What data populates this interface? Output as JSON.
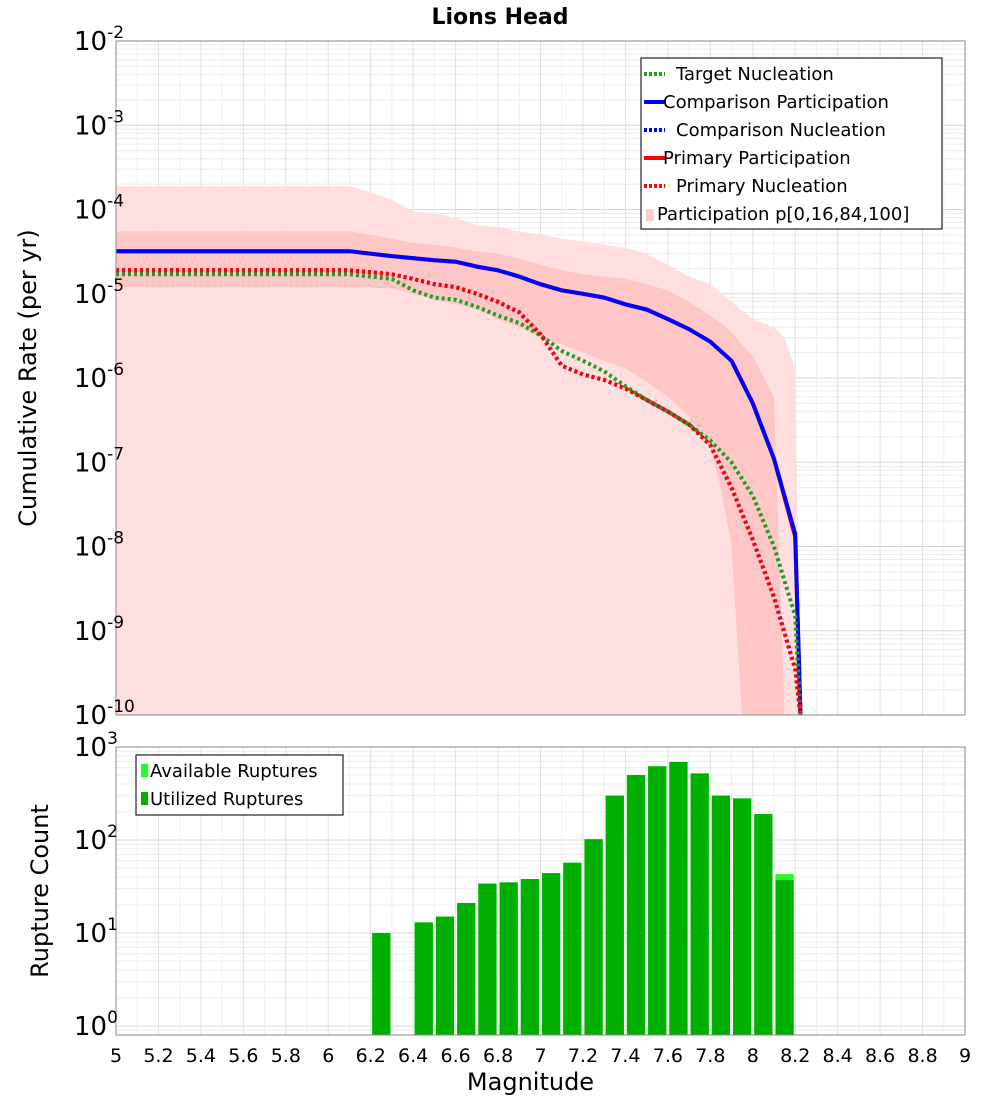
{
  "title": "Lions Head",
  "colors": {
    "target": "#1f9e1f",
    "comparison": "#0000ff",
    "primary": "#ff0000",
    "band_outer": "#ffdcdc",
    "band_inner": "#ffbdbd",
    "available": "#22ff22",
    "utilized": "#00b000"
  },
  "chart_data": [
    {
      "type": "line",
      "title": "Lions Head",
      "ylabel": "Cumulative Rate (per yr)",
      "xlim": [
        5,
        9
      ],
      "ylim": [
        1e-10,
        0.01
      ],
      "yscale": "log",
      "grid": true,
      "legend_position": "top-right",
      "y_ticks": [
        {
          "base": "10",
          "exp": "-2",
          "value": 0.01
        },
        {
          "base": "10",
          "exp": "-3",
          "value": 0.001
        },
        {
          "base": "10",
          "exp": "-4",
          "value": 0.0001
        },
        {
          "base": "10",
          "exp": "-5",
          "value": 1e-05
        },
        {
          "base": "10",
          "exp": "-6",
          "value": 1e-06
        },
        {
          "base": "10",
          "exp": "-7",
          "value": 1e-07
        },
        {
          "base": "10",
          "exp": "-8",
          "value": 1e-08
        },
        {
          "base": "10",
          "exp": "-9",
          "value": 1e-09
        },
        {
          "base": "10",
          "exp": "-10",
          "value": 1e-10
        }
      ],
      "legend": [
        {
          "label": "Target Nucleation",
          "style": "dotted",
          "color": "#1f9e1f"
        },
        {
          "label": "Comparison Participation",
          "style": "solid",
          "color": "#0000ff"
        },
        {
          "label": "Comparison Nucleation",
          "style": "dotted",
          "color": "#0000ff"
        },
        {
          "label": "Primary Participation",
          "style": "solid",
          "color": "#ff0000"
        },
        {
          "label": "Primary Nucleation",
          "style": "dotted",
          "color": "#ff0000"
        },
        {
          "label": "Participation p[0,16,84,100]",
          "style": "band",
          "color": "#ffdcdc"
        }
      ],
      "series": [
        {
          "name": "Primary Participation",
          "style": "solid",
          "color": "#ff0000",
          "x": [
            5.0,
            6.1,
            6.3,
            6.5,
            6.6,
            6.7,
            6.8,
            6.9,
            7.0,
            7.1,
            7.2,
            7.3,
            7.4,
            7.5,
            7.6,
            7.7,
            7.8,
            7.9,
            8.0,
            8.1,
            8.2,
            8.225
          ],
          "y": [
            3.2e-05,
            3.2e-05,
            2.8e-05,
            2.5e-05,
            2.4e-05,
            2.1e-05,
            1.9e-05,
            1.6e-05,
            1.3e-05,
            1.1e-05,
            1e-05,
            9e-06,
            7.5e-06,
            6.5e-06,
            5e-06,
            3.8e-06,
            2.7e-06,
            1.6e-06,
            5e-07,
            1.1e-07,
            1.3e-08,
            1e-10
          ]
        },
        {
          "name": "Comparison Participation",
          "style": "solid",
          "color": "#0000ff",
          "x": [
            5.0,
            6.1,
            6.3,
            6.5,
            6.6,
            6.7,
            6.8,
            6.9,
            7.0,
            7.1,
            7.2,
            7.3,
            7.4,
            7.5,
            7.6,
            7.7,
            7.8,
            7.9,
            8.0,
            8.1,
            8.2,
            8.225
          ],
          "y": [
            3.2e-05,
            3.2e-05,
            2.8e-05,
            2.5e-05,
            2.4e-05,
            2.1e-05,
            1.9e-05,
            1.6e-05,
            1.3e-05,
            1.1e-05,
            1e-05,
            9e-06,
            7.5e-06,
            6.5e-06,
            5e-06,
            3.8e-06,
            2.7e-06,
            1.6e-06,
            5e-07,
            1.1e-07,
            1.4e-08,
            1e-10
          ]
        },
        {
          "name": "Target Nucleation",
          "style": "dotted",
          "color": "#1f9e1f",
          "x": [
            5.0,
            6.1,
            6.2,
            6.3,
            6.4,
            6.5,
            6.6,
            6.7,
            6.8,
            6.9,
            7.0,
            7.1,
            7.2,
            7.3,
            7.4,
            7.5,
            7.6,
            7.7,
            7.8,
            7.9,
            8.0,
            8.1,
            8.2,
            8.225
          ],
          "y": [
            1.7e-05,
            1.7e-05,
            1.6e-05,
            1.5e-05,
            1.1e-05,
            9e-06,
            8.5e-06,
            7e-06,
            5.5e-06,
            4.5e-06,
            3.2e-06,
            2.1e-06,
            1.6e-06,
            1.2e-06,
            8e-07,
            5.5e-07,
            4e-07,
            2.8e-07,
            1.8e-07,
            1e-07,
            4e-08,
            1e-08,
            1.5e-09,
            1e-10
          ]
        },
        {
          "name": "Comparison Nucleation",
          "style": "dotted",
          "color": "#0000ff",
          "x": [
            5.0,
            6.1,
            6.2,
            6.3,
            6.4,
            6.5,
            6.6,
            6.7,
            6.8,
            6.9,
            7.0,
            7.1,
            7.2,
            7.3,
            7.4,
            7.5,
            7.6,
            7.7,
            7.8,
            7.9,
            8.0,
            8.1,
            8.2,
            8.225
          ],
          "y": [
            1.9e-05,
            1.9e-05,
            1.8e-05,
            1.7e-05,
            1.5e-05,
            1.3e-05,
            1.2e-05,
            1e-05,
            8e-06,
            6e-06,
            3.3e-06,
            1.4e-06,
            1.1e-06,
            9.5e-07,
            7.5e-07,
            5.5e-07,
            4e-07,
            2.8e-07,
            1.6e-07,
            5e-08,
            1.2e-08,
            2.5e-09,
            3.5e-10,
            1e-10
          ]
        },
        {
          "name": "Primary Nucleation",
          "style": "dotted",
          "color": "#ff0000",
          "x": [
            5.0,
            6.1,
            6.2,
            6.3,
            6.4,
            6.5,
            6.6,
            6.7,
            6.8,
            6.9,
            7.0,
            7.1,
            7.2,
            7.3,
            7.4,
            7.5,
            7.6,
            7.7,
            7.8,
            7.9,
            8.0,
            8.1,
            8.2,
            8.225
          ],
          "y": [
            1.9e-05,
            1.9e-05,
            1.8e-05,
            1.7e-05,
            1.5e-05,
            1.3e-05,
            1.2e-05,
            1e-05,
            8e-06,
            6e-06,
            3.3e-06,
            1.4e-06,
            1.1e-06,
            9.5e-07,
            7.5e-07,
            5.5e-07,
            4e-07,
            2.8e-07,
            1.6e-07,
            5e-08,
            1.2e-08,
            2.5e-09,
            3.5e-10,
            1e-10
          ]
        }
      ],
      "bands": [
        {
          "name": "p0-p100",
          "x": [
            5.0,
            6.1,
            6.2,
            6.3,
            6.4,
            6.5,
            6.6,
            6.7,
            6.8,
            6.9,
            7.0,
            7.1,
            7.2,
            7.3,
            7.4,
            7.5,
            7.6,
            7.7,
            7.8,
            7.9,
            8.0,
            8.1,
            8.15,
            8.2,
            8.225
          ],
          "upper": [
            0.00019,
            0.00019,
            0.00016,
            0.00013,
            9.5e-05,
            9e-05,
            8e-05,
            6.5e-05,
            6.2e-05,
            5.5e-05,
            5e-05,
            4.5e-05,
            4.2e-05,
            3.8e-05,
            3.5e-05,
            3e-05,
            2.2e-05,
            1.6e-05,
            1.3e-05,
            8e-06,
            5e-06,
            4e-06,
            3e-06,
            1.3e-06,
            1e-10
          ],
          "lower": [
            1e-10,
            1e-10,
            1e-10,
            1e-10,
            1e-10,
            1e-10,
            1e-10,
            1e-10,
            1e-10,
            1e-10,
            1e-10,
            1e-10,
            1e-10,
            1e-10,
            1e-10,
            1e-10,
            1e-10,
            1e-10,
            1e-10,
            1e-10,
            1e-10,
            1e-10,
            1e-10,
            1e-10,
            1e-10
          ]
        },
        {
          "name": "p16-p84",
          "x": [
            5.0,
            6.1,
            6.2,
            6.3,
            6.4,
            6.5,
            6.6,
            6.7,
            6.8,
            6.9,
            7.0,
            7.1,
            7.2,
            7.3,
            7.4,
            7.5,
            7.6,
            7.7,
            7.8,
            7.85,
            7.9,
            7.95,
            8.0,
            8.1,
            8.15
          ],
          "upper": [
            5.5e-05,
            5.5e-05,
            5e-05,
            4.5e-05,
            4e-05,
            3.8e-05,
            3.5e-05,
            3.2e-05,
            3e-05,
            2.6e-05,
            2.2e-05,
            1.9e-05,
            1.7e-05,
            1.6e-05,
            1.5e-05,
            1.3e-05,
            1.1e-05,
            8e-06,
            5.5e-06,
            4.5e-06,
            3.5e-06,
            2.5e-06,
            1.8e-06,
            6e-07,
            1e-10
          ],
          "lower": [
            1.2e-05,
            1.2e-05,
            1.2e-05,
            1.15e-05,
            1e-05,
            8.5e-06,
            7.5e-06,
            6.5e-06,
            5e-06,
            4e-06,
            3e-06,
            2.5e-06,
            2e-06,
            1.6e-06,
            1.3e-06,
            9e-07,
            6e-07,
            3.5e-07,
            1.5e-07,
            5e-08,
            1e-08,
            1e-10,
            1e-10,
            1e-10,
            1e-10
          ]
        }
      ]
    },
    {
      "type": "bar",
      "xlabel": "Magnitude",
      "ylabel": "Rupture Count",
      "xlim": [
        5,
        9
      ],
      "ylim": [
        0.8,
        1000
      ],
      "yscale": "log",
      "grid": true,
      "legend_position": "top-left",
      "x_ticks": [
        "5",
        "5.2",
        "5.4",
        "5.6",
        "5.8",
        "6",
        "6.2",
        "6.4",
        "6.6",
        "6.8",
        "7",
        "7.2",
        "7.4",
        "7.6",
        "7.8",
        "8",
        "8.2",
        "8.4",
        "8.6",
        "8.8",
        "9"
      ],
      "y_ticks": [
        {
          "base": "10",
          "exp": "3",
          "value": 1000
        },
        {
          "base": "10",
          "exp": "2",
          "value": 100
        },
        {
          "base": "10",
          "exp": "1",
          "value": 10
        },
        {
          "base": "10",
          "exp": "0",
          "value": 1
        }
      ],
      "legend": [
        {
          "label": "Available Ruptures",
          "color": "#22ff22"
        },
        {
          "label": "Utilized Ruptures",
          "color": "#00b000"
        }
      ],
      "bin_width": 0.1,
      "bins": [
        6.2,
        6.3,
        6.4,
        6.5,
        6.6,
        6.7,
        6.8,
        6.9,
        7.0,
        7.1,
        7.2,
        7.3,
        7.4,
        7.5,
        7.6,
        7.7,
        7.8,
        7.9,
        8.0,
        8.1
      ],
      "series": [
        {
          "name": "Available Ruptures",
          "values": [
            10,
            0,
            13,
            15,
            21,
            34,
            35,
            38,
            44,
            57,
            102,
            300,
            500,
            620,
            690,
            520,
            300,
            280,
            190,
            43
          ]
        },
        {
          "name": "Utilized Ruptures",
          "values": [
            10,
            0,
            13,
            15,
            21,
            34,
            35,
            38,
            44,
            57,
            102,
            300,
            500,
            620,
            690,
            520,
            300,
            280,
            190,
            37
          ]
        }
      ]
    }
  ]
}
